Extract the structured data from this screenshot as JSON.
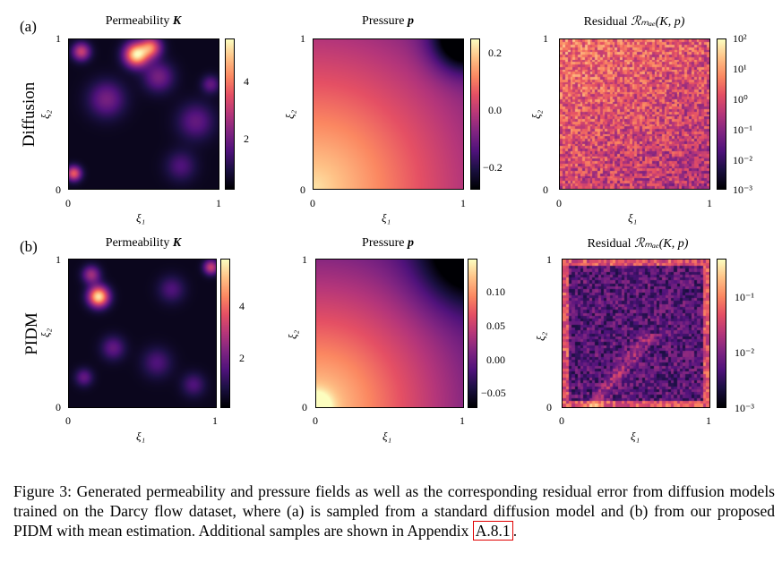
{
  "rows": [
    {
      "panel_label": "(a)",
      "row_label": "Diffusion",
      "plots": [
        {
          "title": "Permeability",
          "title_sym": "K",
          "colorbar_ticks": [
            "4",
            "2"
          ]
        },
        {
          "title": "Pressure",
          "title_sym": "p",
          "colorbar_ticks": [
            "0.2",
            "0.0",
            "−0.2"
          ]
        },
        {
          "title": "Residual",
          "title_sym": "ℛₘₐₑ(K, p)",
          "colorbar_ticks": [
            "10²",
            "10¹",
            "10⁰",
            "10⁻¹",
            "10⁻²",
            "10⁻³"
          ]
        }
      ]
    },
    {
      "panel_label": "(b)",
      "row_label": "PIDM",
      "plots": [
        {
          "title": "Permeability",
          "title_sym": "K",
          "colorbar_ticks": [
            "4",
            "2"
          ]
        },
        {
          "title": "Pressure",
          "title_sym": "p",
          "colorbar_ticks": [
            "0.10",
            "0.05",
            "0.00",
            "−0.05"
          ]
        },
        {
          "title": "Residual",
          "title_sym": "ℛₘₐₑ(K, p)",
          "colorbar_ticks": [
            "10⁻¹",
            "10⁻²",
            "10⁻³"
          ]
        }
      ]
    }
  ],
  "axes": {
    "xlabel": "ξ₁",
    "ylabel": "ξ₂",
    "tick_zero": "0",
    "tick_one": "1"
  },
  "caption": {
    "text": "Figure 3: Generated permeability and pressure fields as well as the corresponding residual error from diffusion models trained on the Darcy flow dataset, where (a) is sampled from a standard diffusion model and (b) from our proposed PIDM with mean estimation. Additional samples are shown in Appendix ",
    "ref": "A.8.1",
    "end": "."
  },
  "colormap": "magma"
}
